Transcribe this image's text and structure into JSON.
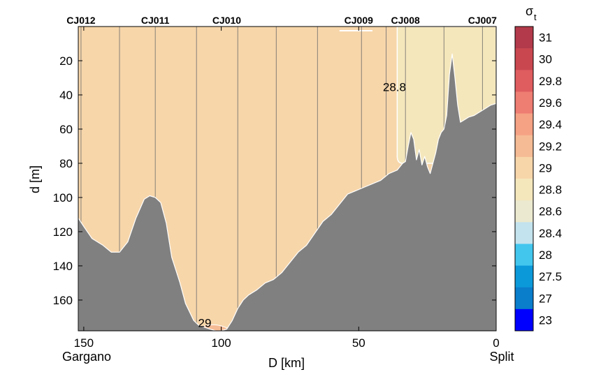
{
  "chart_data": {
    "type": "area",
    "xlabel": "D [km]",
    "ylabel": "d [m]",
    "colorbar_title": "σ",
    "colorbar_title_sub": "t",
    "xlim": [
      152,
      0
    ],
    "ylim": [
      178,
      0
    ],
    "x_ticks": [
      150,
      100,
      50,
      0
    ],
    "y_ticks": [
      20,
      40,
      60,
      80,
      100,
      120,
      140,
      160
    ],
    "endpoints": {
      "left": "Gargano",
      "right": "Split"
    },
    "stations": [
      {
        "name": "CJ012",
        "d_km": 151
      },
      {
        "name": "CJ011",
        "d_km": 124
      },
      {
        "name": "CJ010",
        "d_km": 98
      },
      {
        "name": "CJ009",
        "d_km": 50
      },
      {
        "name": "CJ008",
        "d_km": 33
      },
      {
        "name": "CJ007",
        "d_km": 5
      }
    ],
    "profile_lines_km": [
      151,
      137,
      124,
      109,
      94,
      80,
      65,
      49,
      40,
      33,
      19,
      5
    ],
    "contour_labels": [
      {
        "text": "28.8",
        "d_km": 37,
        "depth_m": 36
      },
      {
        "text": "29",
        "d_km": 106,
        "depth_m": 174
      }
    ],
    "background_sigma": "29",
    "surface_sigma_zone": {
      "sigma": "28.8",
      "from_km": 36,
      "to_km": 0,
      "bottom_m": 80
    },
    "bottom_sigma_zone": {
      "sigma": "29.2",
      "from_km": 110,
      "to_km": 96
    },
    "colorbar": {
      "levels": [
        "31",
        "30",
        "29.8",
        "29.6",
        "29.4",
        "29.2",
        "29",
        "28.8",
        "28.6",
        "28.4",
        "28",
        "27.5",
        "27",
        "23"
      ],
      "colors": [
        "#b23a4a",
        "#c9474f",
        "#df5d5f",
        "#ee7d72",
        "#f5a184",
        "#f5bb94",
        "#f7d6aa",
        "#f5e7bc",
        "#ebe9cf",
        "#c3e3ee",
        "#42c6ee",
        "#0c99da",
        "#0a7dcb",
        "#0000ff"
      ]
    },
    "bathymetry": {
      "d_km": [
        152,
        150,
        147,
        143,
        140,
        137,
        134,
        131,
        128,
        126,
        124,
        122,
        120,
        118,
        115,
        113,
        110,
        108,
        106,
        104,
        102,
        100,
        98,
        96,
        94,
        92,
        90,
        87,
        84,
        81,
        78,
        75,
        72,
        69,
        66,
        63,
        60,
        57,
        54,
        51,
        48,
        45,
        42,
        39,
        36,
        34,
        33,
        32,
        31,
        30,
        29,
        28,
        27,
        26,
        25,
        24,
        23,
        22,
        21,
        20,
        19,
        18,
        17,
        16,
        15,
        14,
        13,
        12,
        10,
        8,
        6,
        4,
        2,
        0
      ],
      "depth_m": [
        112,
        117,
        124,
        128,
        132,
        132,
        126,
        112,
        101,
        99,
        100,
        103,
        115,
        135,
        150,
        162,
        172,
        175,
        176,
        177,
        178,
        178,
        177,
        172,
        165,
        160,
        157,
        154,
        150,
        148,
        144,
        138,
        132,
        128,
        121,
        114,
        110,
        104,
        98,
        96,
        94,
        92,
        90,
        86,
        84,
        80,
        79,
        70,
        62,
        66,
        78,
        72,
        81,
        76,
        82,
        86,
        80,
        74,
        66,
        62,
        60,
        52,
        28,
        16,
        30,
        46,
        56,
        55,
        53,
        52,
        50,
        48,
        46,
        45
      ]
    }
  }
}
